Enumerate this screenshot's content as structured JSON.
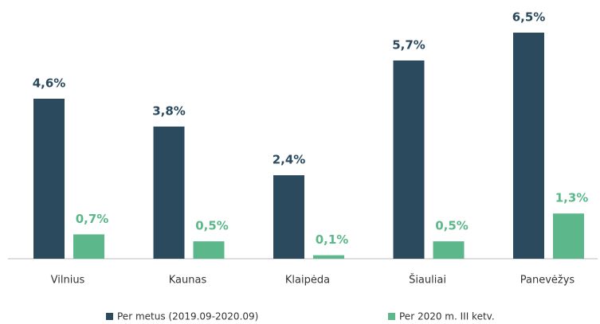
{
  "chart_data": {
    "type": "bar",
    "categories": [
      "Vilnius",
      "Kaunas",
      "Klaipėda",
      "Šiauliai",
      "Panevėžys"
    ],
    "series": [
      {
        "name": "Per metus (2019.09-2020.09)",
        "color": "#2b4a5e",
        "values": [
          4.6,
          3.8,
          2.4,
          5.7,
          6.5
        ],
        "value_labels": [
          "4,6%",
          "3,8%",
          "2,4%",
          "5,7%",
          "6,5%"
        ]
      },
      {
        "name": "Per 2020 m. III ketv.",
        "color": "#5cb88a",
        "values": [
          0.7,
          0.5,
          0.1,
          0.5,
          1.3
        ],
        "value_labels": [
          "0,7%",
          "0,5%",
          "0,1%",
          "0,5%",
          "1,3%"
        ]
      }
    ]
  }
}
